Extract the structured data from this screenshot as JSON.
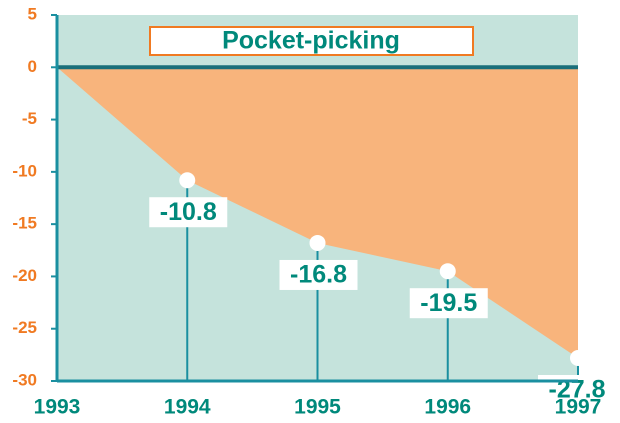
{
  "chart_data": {
    "type": "area",
    "title": "Pocket-picking",
    "categories": [
      "1993",
      "1994",
      "1995",
      "1996",
      "1997"
    ],
    "values": [
      0,
      -10.8,
      -16.8,
      -19.5,
      -27.8
    ],
    "color": "#f8b47c",
    "background": "#c5e3dc",
    "ylim": [
      -30,
      5
    ],
    "yticks": [
      5,
      0,
      -5,
      -10,
      -15,
      -20,
      -25,
      -30
    ]
  }
}
